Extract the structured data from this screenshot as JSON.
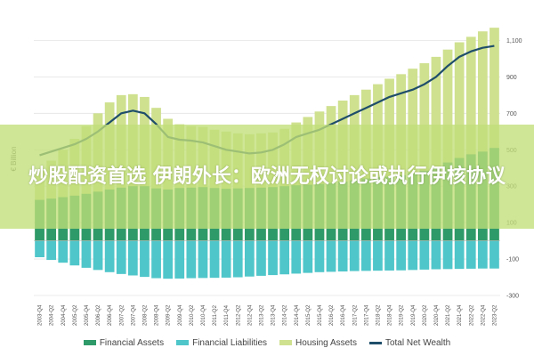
{
  "banner": {
    "text": "炒股配资首选 伊朗外长：欧洲无权讨论或执行伊核协议"
  },
  "colors": {
    "financial_assets": "#2e9a6a",
    "financial_liabilities": "#4fc6c9",
    "housing_assets": "#cfe08f",
    "total_net_wealth": "#1f4e6b"
  },
  "chart_data": {
    "type": "bar",
    "ylabel": "€ Billion",
    "ylim": [
      -300,
      1200
    ],
    "yticks": [
      -300,
      -100,
      100,
      300,
      500,
      700,
      900,
      1100
    ],
    "ytick_labels": [
      "-300",
      "-100",
      "100",
      "300",
      "500",
      "700",
      "900",
      "1,100"
    ],
    "grid": true,
    "legend_position": "bottom",
    "categories": [
      "2003-Q4",
      "2004-Q2",
      "2004-Q4",
      "2005-Q2",
      "2005-Q4",
      "2006-Q2",
      "2006-Q4",
      "2007-Q2",
      "2007-Q4",
      "2008-Q2",
      "2008-Q4",
      "2009-Q2",
      "2009-Q4",
      "2010-Q2",
      "2010-Q4",
      "2011-Q2",
      "2011-Q4",
      "2012-Q2",
      "2012-Q4",
      "2013-Q2",
      "2013-Q4",
      "2014-Q2",
      "2014-Q4",
      "2015-Q2",
      "2015-Q4",
      "2016-Q2",
      "2016-Q4",
      "2017-Q2",
      "2017-Q4",
      "2018-Q2",
      "2018-Q4",
      "2019-Q2",
      "2019-Q4",
      "2020-Q2",
      "2020-Q4",
      "2021-Q2",
      "2021-Q4",
      "2022-Q2",
      "2022-Q4",
      "2023-Q2"
    ],
    "series": [
      {
        "name": "Financial Assets",
        "values": [
          225,
          232,
          240,
          248,
          258,
          270,
          282,
          292,
          300,
          300,
          288,
          282,
          290,
          292,
          295,
          290,
          286,
          288,
          290,
          292,
          295,
          300,
          305,
          308,
          312,
          318,
          325,
          332,
          342,
          350,
          352,
          360,
          372,
          385,
          400,
          430,
          455,
          475,
          490,
          510
        ]
      },
      {
        "name": "Financial Liabilities",
        "values": [
          -90,
          -105,
          -120,
          -135,
          -148,
          -160,
          -172,
          -182,
          -190,
          -198,
          -205,
          -208,
          -207,
          -205,
          -204,
          -203,
          -202,
          -200,
          -196,
          -192,
          -188,
          -184,
          -180,
          -176,
          -172,
          -170,
          -168,
          -166,
          -165,
          -164,
          -163,
          -162,
          -160,
          -158,
          -156,
          -155,
          -154,
          -153,
          -152,
          -152
        ]
      },
      {
        "name": "Housing Assets",
        "values": [
          385,
          440,
          500,
          560,
          630,
          700,
          760,
          800,
          805,
          790,
          730,
          670,
          640,
          630,
          625,
          610,
          600,
          590,
          585,
          590,
          595,
          615,
          650,
          680,
          710,
          740,
          770,
          800,
          830,
          860,
          890,
          915,
          945,
          975,
          1010,
          1050,
          1090,
          1120,
          1150,
          1170
        ]
      },
      {
        "name": "Total Net Wealth",
        "values": [
          470,
          490,
          510,
          530,
          560,
          600,
          650,
          700,
          715,
          700,
          640,
          570,
          555,
          550,
          540,
          520,
          500,
          490,
          480,
          485,
          500,
          530,
          570,
          590,
          610,
          640,
          670,
          700,
          730,
          760,
          790,
          810,
          830,
          860,
          900,
          960,
          1010,
          1040,
          1060,
          1070
        ]
      }
    ]
  }
}
